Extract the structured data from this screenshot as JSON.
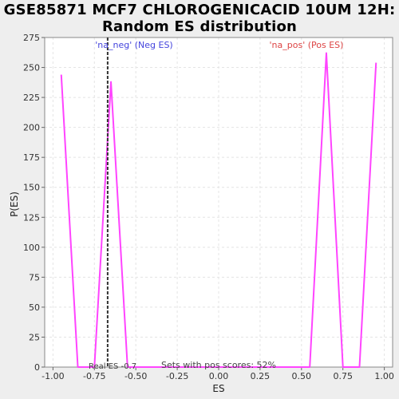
{
  "chart_data": {
    "type": "line",
    "title_lines": [
      "GSE85871 MCF7 CHLOROGENICACID 10UM 12H:",
      "Random ES distribution"
    ],
    "xlabel": "ES",
    "ylabel": "P(ES)",
    "xlim": [
      -1.05,
      1.05
    ],
    "ylim": [
      0,
      275
    ],
    "x_ticks": [
      "-1.00",
      "-0.75",
      "-0.50",
      "-0.25",
      "0.00",
      "0.25",
      "0.50",
      "0.75",
      "1.00"
    ],
    "x_tick_values": [
      -1.0,
      -0.75,
      -0.5,
      -0.25,
      0.0,
      0.25,
      0.5,
      0.75,
      1.0
    ],
    "y_ticks": [
      "0",
      "25",
      "50",
      "75",
      "100",
      "125",
      "150",
      "175",
      "200",
      "225",
      "250",
      "275"
    ],
    "y_tick_values": [
      0,
      25,
      50,
      75,
      100,
      125,
      150,
      175,
      200,
      225,
      250,
      275
    ],
    "grid": true,
    "series": [
      {
        "color": "#ff44ff",
        "x": [
          -0.95,
          -0.85,
          -0.75,
          -0.65,
          -0.55,
          -0.45,
          -0.35,
          -0.25,
          -0.15,
          -0.05,
          0.05,
          0.15,
          0.25,
          0.35,
          0.45,
          0.55,
          0.65,
          0.75,
          0.85,
          0.95
        ],
        "y": [
          244,
          0,
          0,
          238,
          0,
          0,
          0,
          0,
          0,
          0,
          0,
          0,
          0,
          0,
          0,
          0,
          262,
          0,
          0,
          254
        ]
      }
    ],
    "real_es": -0.67,
    "annotations": {
      "neg_label": "'na_neg' (Neg ES)",
      "pos_label": "'na_pos' (Pos ES)",
      "real_es_label": "Real ES -0.7",
      "sets_label": "Sets with pos scores: 52%"
    },
    "colors": {
      "neg_label": "#4444dd",
      "pos_label": "#dd4444",
      "line": "#ff44ff",
      "real_es_line": "#333333",
      "plot_bg": "#ffffff",
      "page_bg": "#eeeeee",
      "grid": "#e4e4e4"
    }
  }
}
